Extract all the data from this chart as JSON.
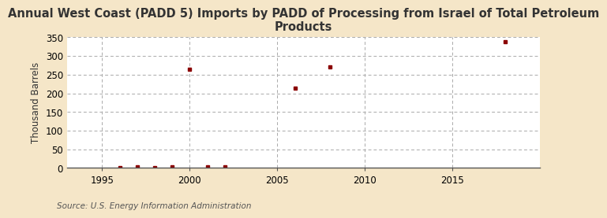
{
  "title": "Annual West Coast (PADD 5) Imports by PADD of Processing from Israel of Total Petroleum\nProducts",
  "ylabel": "Thousand Barrels",
  "source": "Source: U.S. Energy Information Administration",
  "xlim": [
    1993,
    2020
  ],
  "ylim": [
    0,
    350
  ],
  "yticks": [
    0,
    50,
    100,
    150,
    200,
    250,
    300,
    350
  ],
  "xticks": [
    1995,
    2000,
    2005,
    2010,
    2015
  ],
  "background_color": "#f5e6c8",
  "plot_bg_color": "#ffffff",
  "grid_color": "#aaaaaa",
  "marker_color": "#8b0000",
  "data_x": [
    1996,
    1997,
    1998,
    1999,
    2000,
    2001,
    2002,
    2006,
    2008,
    2018
  ],
  "data_y": [
    2,
    3,
    2,
    3,
    265,
    3,
    3,
    213,
    270,
    338
  ],
  "title_fontsize": 10.5,
  "ylabel_fontsize": 8.5,
  "source_fontsize": 7.5,
  "tick_fontsize": 8.5
}
